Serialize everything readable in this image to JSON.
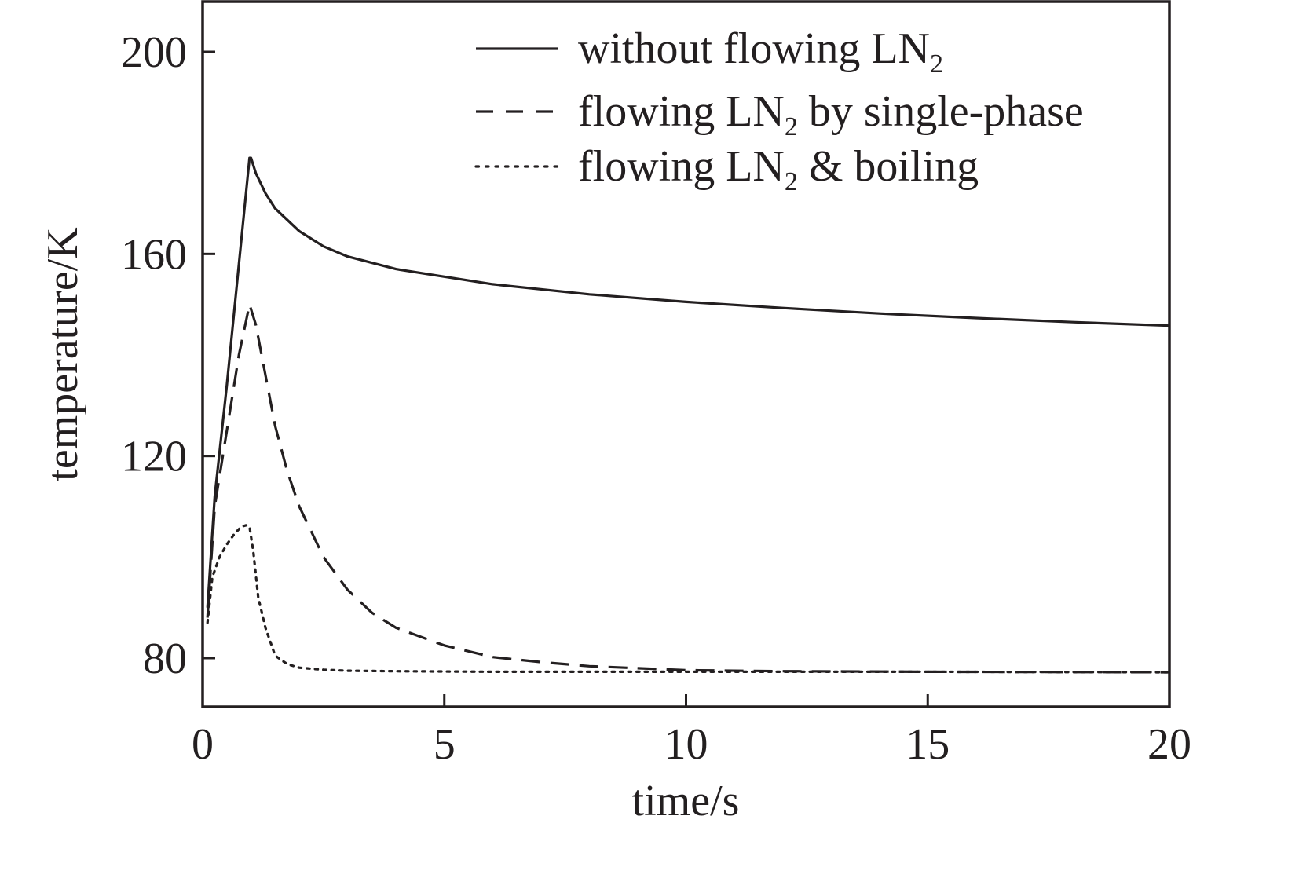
{
  "chart_data": {
    "type": "line",
    "xlabel": "time/s",
    "ylabel": "temperature/K",
    "xlim": [
      0,
      20
    ],
    "ylim": [
      70,
      210
    ],
    "x_ticks": [
      0,
      5,
      10,
      15,
      20
    ],
    "y_ticks": [
      80,
      120,
      160,
      200
    ],
    "x_tick_labels": [
      "0",
      "5",
      "10",
      "15",
      "20"
    ],
    "y_tick_labels": [
      "80",
      "120",
      "160",
      "200"
    ],
    "grid": false,
    "legend_position": "top-right",
    "line_color": "#231f20",
    "series": [
      {
        "name": "without flowing LN",
        "name_subscript": "2",
        "style": "solid",
        "x": [
          0.1,
          0.25,
          0.5,
          0.75,
          0.97,
          1.0,
          1.1,
          1.3,
          1.5,
          2.0,
          2.5,
          3.0,
          4.0,
          5.0,
          6.0,
          8.0,
          10.0,
          12.0,
          14.0,
          16.0,
          18.0,
          20.0
        ],
        "y": [
          90,
          112,
          134,
          158,
          179,
          179,
          176,
          172,
          169,
          164.5,
          161.5,
          159.5,
          157,
          155.5,
          154,
          152,
          150.5,
          149.3,
          148.2,
          147.3,
          146.5,
          145.8
        ]
      },
      {
        "name": "flowing LN",
        "name_subscript": "2",
        "name_suffix": " by single-phase",
        "style": "dashed",
        "x": [
          0.1,
          0.25,
          0.5,
          0.75,
          0.97,
          1.1,
          1.3,
          1.5,
          1.75,
          2.0,
          2.5,
          3.0,
          3.5,
          4.0,
          5.0,
          6.0,
          7.0,
          8.0,
          10.0,
          12.0,
          15.0,
          20.0
        ],
        "y": [
          88,
          110,
          125,
          140,
          150,
          146,
          136,
          126,
          117,
          110,
          100,
          93.5,
          89,
          86,
          82.5,
          80.2,
          79.2,
          78.4,
          77.6,
          77.4,
          77.3,
          77.2
        ]
      },
      {
        "name": "flowing LN",
        "name_subscript": "2",
        "name_suffix": " & boiling",
        "style": "dotted",
        "x": [
          0.1,
          0.2,
          0.35,
          0.5,
          0.65,
          0.8,
          0.9,
          0.97,
          1.05,
          1.15,
          1.3,
          1.5,
          1.75,
          2.0,
          2.5,
          3.0,
          4.0,
          6.0,
          10.0,
          15.0,
          20.0
        ],
        "y": [
          87,
          96,
          100,
          102.5,
          104.5,
          106,
          106.3,
          106,
          101,
          92,
          86,
          80.5,
          78.8,
          78.1,
          77.7,
          77.5,
          77.4,
          77.3,
          77.3,
          77.3,
          77.2
        ]
      }
    ]
  }
}
